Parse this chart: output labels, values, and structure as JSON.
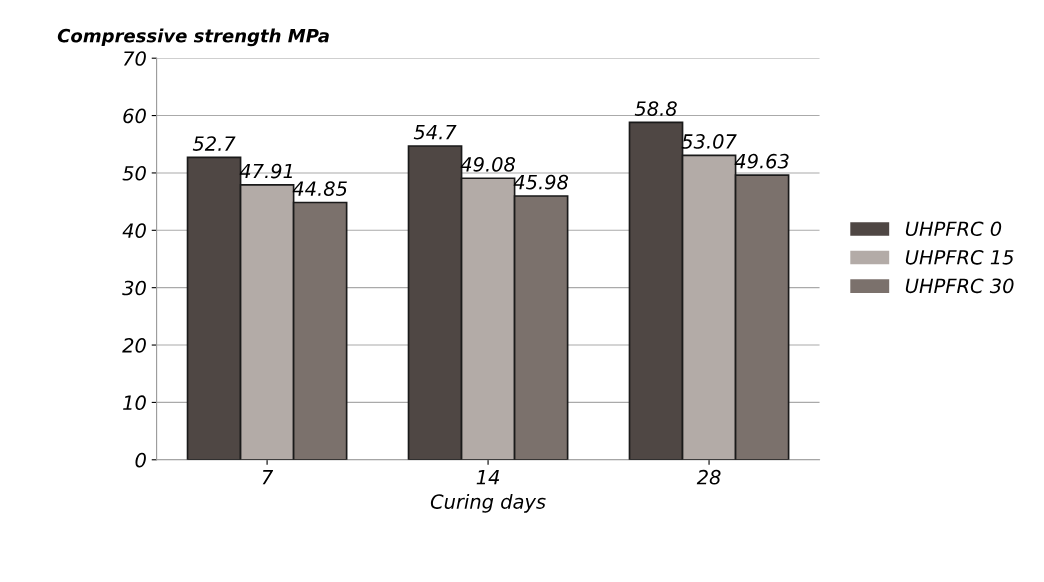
{
  "chart_data": {
    "type": "bar",
    "ylabel": "Compressive strength MPa",
    "xlabel": "Curing days",
    "categories": [
      "7",
      "14",
      "28"
    ],
    "series": [
      {
        "name": "UHPFRC 0",
        "color": "#4f4744",
        "values": [
          52.7,
          54.7,
          58.8
        ]
      },
      {
        "name": "UHPFRC 15",
        "color": "#b3aba7",
        "values": [
          47.91,
          49.08,
          53.07
        ]
      },
      {
        "name": "UHPFRC 30",
        "color": "#7b716c",
        "values": [
          44.85,
          45.98,
          49.63
        ]
      }
    ],
    "ylim": [
      0,
      70
    ],
    "yticks": [
      0,
      10,
      20,
      30,
      40,
      50,
      60,
      70
    ],
    "grid": "y",
    "legend": "right",
    "data_labels": true
  }
}
